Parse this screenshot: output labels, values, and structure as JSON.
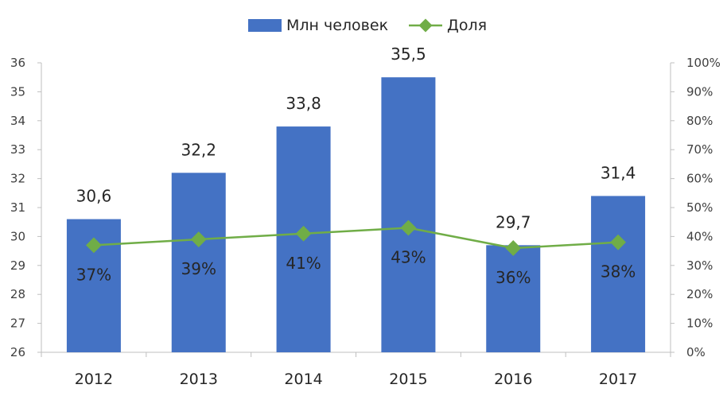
{
  "chart_data": {
    "type": "bar",
    "categories": [
      "2012",
      "2013",
      "2014",
      "2015",
      "2016",
      "2017"
    ],
    "series": [
      {
        "name": "Млн человек",
        "type": "bar",
        "axis": "left",
        "color": "#4472c4",
        "values": [
          30.6,
          32.2,
          33.8,
          35.5,
          29.7,
          31.4
        ],
        "labels": [
          "30,6",
          "32,2",
          "33,8",
          "35,5",
          "29,7",
          "31,4"
        ]
      },
      {
        "name": "Доля",
        "type": "line",
        "axis": "right",
        "color": "#70ad47",
        "marker": "diamond",
        "values": [
          0.37,
          0.39,
          0.41,
          0.43,
          0.36,
          0.38
        ],
        "labels": [
          "37%",
          "39%",
          "41%",
          "43%",
          "36%",
          "38%"
        ]
      }
    ],
    "y_left": {
      "min": 26,
      "max": 36,
      "ticks": [
        "26",
        "27",
        "28",
        "29",
        "30",
        "31",
        "32",
        "33",
        "34",
        "35",
        "36"
      ]
    },
    "y_right": {
      "min": 0,
      "max": 1,
      "ticks": [
        "0%",
        "10%",
        "20%",
        "30%",
        "40%",
        "50%",
        "60%",
        "70%",
        "80%",
        "90%",
        "100%"
      ]
    },
    "legend_position": "top-center",
    "grid": false
  }
}
